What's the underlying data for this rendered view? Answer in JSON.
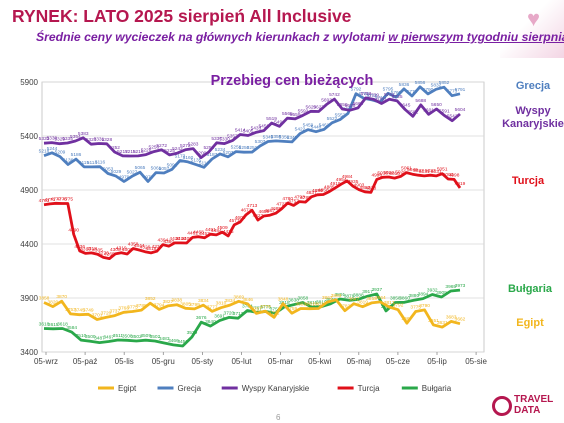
{
  "slide": {
    "title": "RYNEK: LATO 2025 sierpień All Inclusive",
    "subtitle_part1": "Średnie ceny wycieczek na głównych kierunkach z wylotami ",
    "subtitle_underlined": "w pierwszym tygodniu sierpnia",
    "page_number": "6",
    "logo_line1": "TRAVEL",
    "logo_line2": "DATA"
  },
  "colors": {
    "Grecja": "#4f7fbf",
    "Wyspy Kanaryjskie": "#7030a0",
    "Turcja": "#e0101a",
    "Bułgaria": "#2aa84a",
    "Egipt": "#f2b61e"
  },
  "chart_data": {
    "type": "line",
    "title": "Przebieg cen bieżących",
    "ylim": [
      3400,
      5900
    ],
    "yticks": [
      3400,
      3900,
      4400,
      4900,
      5400,
      5900
    ],
    "xticks": [
      "05-wrz",
      "05-paź",
      "05-lis",
      "05-gru",
      "05-sty",
      "05-lut",
      "05-mar",
      "05-kwi",
      "05-maj",
      "05-cze",
      "05-lip",
      "05-sie"
    ],
    "grid": true,
    "legend_position": "bottom",
    "series": [
      {
        "name": "Grecja",
        "values": [
          5218,
          5244,
          5209,
          5136,
          5186,
          5115,
          5114,
          5116,
          5053,
          5029,
          4979,
          5027,
          5065,
          4979,
          5061,
          5057,
          5092,
          5173,
          5160,
          5135,
          5110,
          5187,
          5234,
          5207,
          5256,
          5250,
          5251,
          5307,
          5349,
          5355,
          5350,
          5345,
          5422,
          5459,
          5440,
          5461,
          5522,
          5552,
          5609,
          5792,
          5748,
          5734,
          5713,
          5795,
          5760,
          5836,
          5770,
          5856,
          5790,
          5832,
          5852,
          5773,
          5791
        ],
        "end_label": "Grecja"
      },
      {
        "name": "Wyspy Kanaryjskie",
        "values": [
          5333,
          5339,
          5329,
          5335,
          5354,
          5383,
          5324,
          5331,
          5328,
          5252,
          5217,
          5215,
          5216,
          5228,
          5256,
          5272,
          5225,
          5242,
          5272,
          5283,
          5200,
          5252,
          5337,
          5330,
          5357,
          5414,
          5405,
          5433,
          5450,
          5519,
          5490,
          5565,
          5559,
          5592,
          5629,
          5627,
          5693,
          5742,
          5650,
          5639,
          5660,
          5753,
          5739,
          5701,
          5741,
          5725,
          5645,
          5582,
          5688,
          5601,
          5650,
          5591,
          5542,
          5604
        ],
        "end_label": "Wyspy Kanaryjskie"
      },
      {
        "name": "Turcja",
        "values": [
          4763,
          4771,
          4777,
          4775,
          4775,
          4490,
          4336,
          4313,
          4318,
          4305,
          4276,
          4265,
          4308,
          4319,
          4307,
          4358,
          4344,
          4329,
          4318,
          4333,
          4394,
          4380,
          4410,
          4410,
          4409,
          4461,
          4468,
          4457,
          4491,
          4484,
          4509,
          4475,
          4577,
          4604,
          4671,
          4713,
          4622,
          4659,
          4667,
          4685,
          4727,
          4780,
          4757,
          4793,
          4788,
          4837,
          4856,
          4858,
          4885,
          4919,
          4954,
          4984,
          4935,
          4903,
          4883,
          4878,
          4998,
          5018,
          5020,
          5010,
          5026,
          5061,
          5046,
          5037,
          5031,
          5037,
          5031,
          5051,
          5002,
          4998,
          4919
        ],
        "end_label": "Turcja"
      },
      {
        "name": "Bułgaria",
        "values": [
          3618,
          3615,
          3618,
          3584,
          3510,
          3500,
          3487,
          3497,
          3511,
          3508,
          3502,
          3509,
          3502,
          3483,
          3466,
          3456,
          3539,
          3676,
          3640,
          3691,
          3720,
          3713,
          3784,
          3767,
          3775,
          3758,
          3818,
          3838,
          3858,
          3815,
          3819,
          3846,
          3891,
          3879,
          3888,
          3917,
          3937,
          3781,
          3858,
          3860,
          3880,
          3894,
          3932,
          3909,
          3965,
          3973
        ],
        "end_label": "Bułgaria"
      },
      {
        "name": "Egipt",
        "values": [
          3858,
          3820,
          3870,
          3753,
          3745,
          3749,
          3701,
          3720,
          3737,
          3768,
          3775,
          3788,
          3852,
          3794,
          3827,
          3838,
          3805,
          3799,
          3834,
          3777,
          3810,
          3834,
          3869,
          3846,
          3757,
          3779,
          3721,
          3848,
          3759,
          3803,
          3801,
          3803,
          3862,
          3883,
          3782,
          3847,
          3819,
          3855,
          3864,
          3817,
          3792,
          3667,
          3775,
          3790,
          3651,
          3631,
          3683,
          3662
        ],
        "end_label": "Egipt"
      }
    ],
    "legend": [
      "Egipt",
      "Grecja",
      "Wyspy Kanaryjskie",
      "Turcja",
      "Bułgaria"
    ]
  }
}
